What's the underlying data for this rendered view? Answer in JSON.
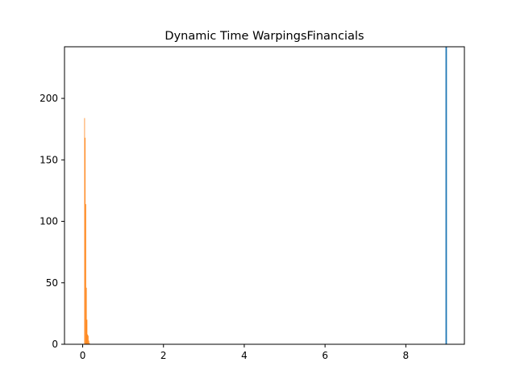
{
  "chart_data": {
    "type": "bar",
    "title": "Dynamic Time WarpingsFinancials",
    "xlabel": "",
    "ylabel": "",
    "xlim": [
      -0.45,
      9.45
    ],
    "ylim": [
      0,
      242
    ],
    "x_ticks": [
      0,
      2,
      4,
      6,
      8
    ],
    "y_ticks": [
      0,
      50,
      100,
      150,
      200
    ],
    "grid": false,
    "legend": "none",
    "colors": {
      "histogram": "#ff7f0e",
      "marker_line": "#1f77b4"
    },
    "histogram_bins": [
      {
        "x0": 0.04,
        "x1": 0.055,
        "count": 184
      },
      {
        "x0": 0.055,
        "x1": 0.07,
        "count": 168
      },
      {
        "x0": 0.07,
        "x1": 0.085,
        "count": 114
      },
      {
        "x0": 0.085,
        "x1": 0.1,
        "count": 46
      },
      {
        "x0": 0.1,
        "x1": 0.115,
        "count": 20
      },
      {
        "x0": 0.115,
        "x1": 0.13,
        "count": 8
      },
      {
        "x0": 0.13,
        "x1": 0.145,
        "count": 7
      },
      {
        "x0": 0.145,
        "x1": 0.16,
        "count": 3
      },
      {
        "x0": 0.16,
        "x1": 0.175,
        "count": 1
      }
    ],
    "vertical_line_x": 9.0
  }
}
